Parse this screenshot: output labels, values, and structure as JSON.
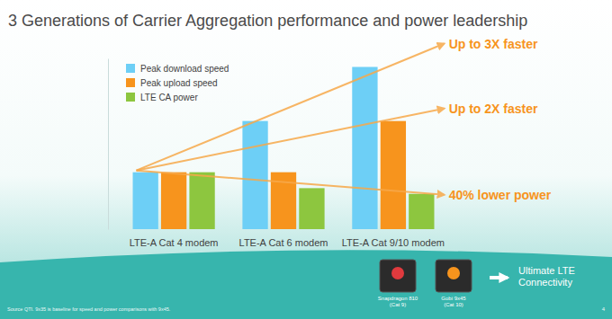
{
  "chart_data": {
    "type": "bar",
    "title": "3 Generations of Carrier Aggregation performance and power leadership",
    "categories": [
      "LTE-A Cat 4 modem",
      "LTE-A Cat 6 modem",
      "LTE-A Cat 9/10 modem"
    ],
    "series": [
      {
        "name": "Peak download speed",
        "color": "#6dcff6",
        "values": [
          1,
          1.9,
          2.85
        ]
      },
      {
        "name": "Peak upload speed",
        "color": "#f7941d",
        "values": [
          1,
          1,
          1.9
        ]
      },
      {
        "name": "LTE CA power",
        "color": "#8dc63f",
        "values": [
          1,
          0.72,
          0.62
        ]
      }
    ],
    "ylim": [
      0,
      3
    ],
    "yticks": [],
    "tick_labels": "x",
    "grid": false,
    "legend": "upper left",
    "annotations": [
      "Up to 3X faster",
      "Up to 2X faster",
      "40% lower power"
    ],
    "chips": [
      {
        "name": "Snapdragon 810",
        "note": "(Cat 9)"
      },
      {
        "name": "Gobi 9x45",
        "note": "(Cat 10)"
      }
    ],
    "callout": [
      "Ultimate LTE",
      "Connectivity"
    ],
    "source": "Source QTI. 9x35 is baseline for speed and power comparisons with 9x45.",
    "page_number": "4"
  }
}
